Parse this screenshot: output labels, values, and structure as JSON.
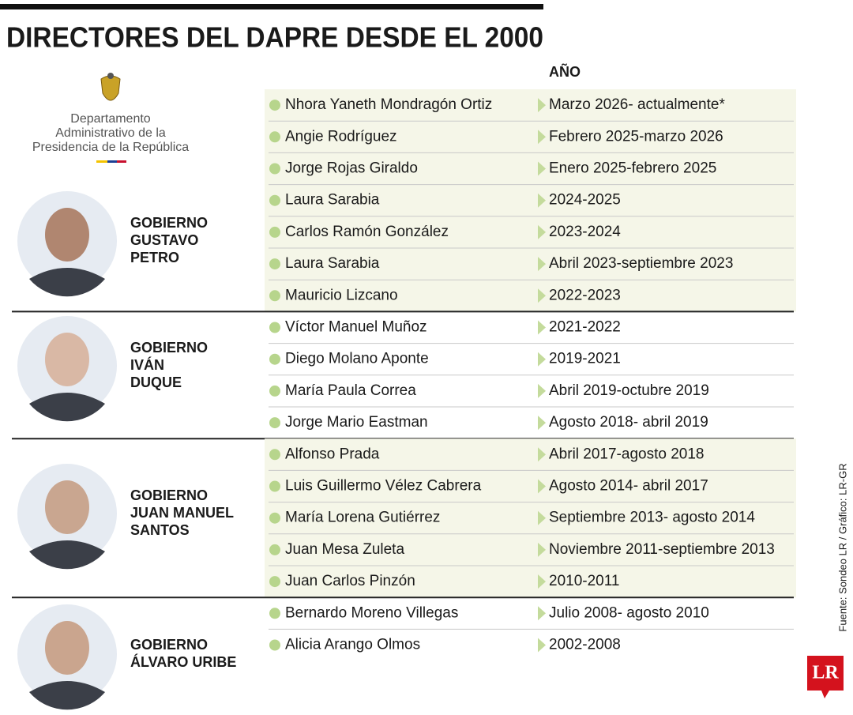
{
  "header": {
    "title": "DIRECTORES DEL DAPRE DESDE EL 2000",
    "year_column": "AÑO"
  },
  "logo": {
    "lines": [
      "Departamento",
      "Administrativo de la",
      "Presidencia de la República"
    ]
  },
  "groups": [
    {
      "label": [
        "GOBIERNO",
        "GUSTAVO",
        "PETRO"
      ],
      "rows": [
        {
          "name": "Nhora Yaneth Mondragón Ortiz",
          "year": "Marzo 2026- actualmente*"
        },
        {
          "name": "Angie Rodríguez",
          "year": "Febrero 2025-marzo 2026"
        },
        {
          "name": "Jorge Rojas Giraldo",
          "year": "Enero 2025-febrero 2025"
        },
        {
          "name": "Laura Sarabia",
          "year": "2024-2025"
        },
        {
          "name": "Carlos Ramón González",
          "year": "2023-2024"
        },
        {
          "name": "Laura Sarabia",
          "year": "Abril 2023-septiembre 2023"
        },
        {
          "name": "Mauricio Lizcano",
          "year": "2022-2023"
        }
      ]
    },
    {
      "label": [
        "GOBIERNO",
        "IVÁN",
        "DUQUE"
      ],
      "rows": [
        {
          "name": "Víctor Manuel Muñoz",
          "year": "2021-2022"
        },
        {
          "name": "Diego Molano Aponte",
          "year": "2019-2021"
        },
        {
          "name": "María Paula Correa",
          "year": "Abril 2019-octubre 2019"
        },
        {
          "name": "Jorge Mario Eastman",
          "year": "Agosto 2018- abril 2019"
        }
      ]
    },
    {
      "label": [
        "GOBIERNO",
        "JUAN MANUEL",
        "SANTOS"
      ],
      "rows": [
        {
          "name": "Alfonso Prada",
          "year": "Abril 2017-agosto 2018"
        },
        {
          "name": "Luis Guillermo Vélez Cabrera",
          "year": "Agosto 2014- abril 2017"
        },
        {
          "name": "María Lorena Gutiérrez",
          "year": "Septiembre 2013- agosto 2014"
        },
        {
          "name": "Juan Mesa Zuleta",
          "year": "Noviembre 2011-septiembre 2013"
        },
        {
          "name": "Juan Carlos Pinzón",
          "year": "2010-2011"
        }
      ]
    },
    {
      "label": [
        "GOBIERNO",
        "ÁLVARO URIBE"
      ],
      "rows": [
        {
          "name": "Bernardo Moreno Villegas",
          "year": "Julio 2008- agosto 2010"
        },
        {
          "name": "Alicia Arango Olmos",
          "year": "2002-2008"
        }
      ]
    }
  ],
  "source": "Fuente: Sondeo LR / Gráfico: LR-GR",
  "brand": "LR"
}
